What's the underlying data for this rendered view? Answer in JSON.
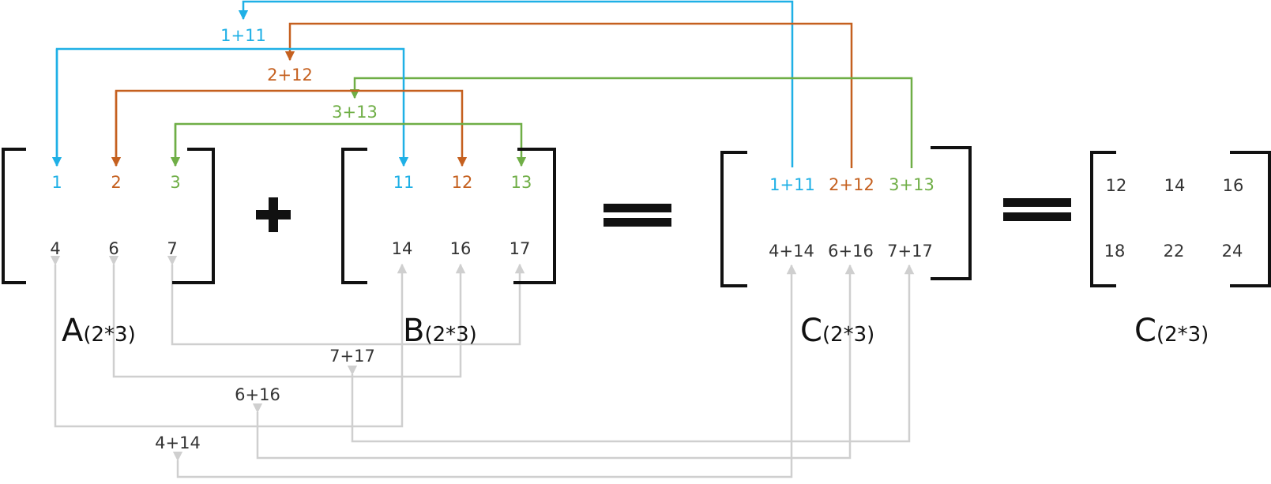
{
  "colors": {
    "blue": "#1fb0e6",
    "orange": "#c5601f",
    "green": "#6fae46",
    "gray": "#cfcfcf",
    "black": "#111111",
    "dark_text": "#333333"
  },
  "matrices": {
    "A": {
      "name": "A",
      "dims": "(2*3)",
      "row1": [
        "1",
        "2",
        "3"
      ],
      "row2": [
        "4",
        "6",
        "7"
      ]
    },
    "B": {
      "name": "B",
      "dims": "(2*3)",
      "row1": [
        "11",
        "12",
        "13"
      ],
      "row2": [
        "14",
        "16",
        "17"
      ]
    },
    "C_sum": {
      "name": "C",
      "dims": "(2*3)",
      "row1": [
        "1+11",
        "2+12",
        "3+13"
      ],
      "row2": [
        "4+14",
        "6+16",
        "7+17"
      ]
    },
    "C_result": {
      "name": "C",
      "dims": "(2*3)",
      "row1": [
        "12",
        "14",
        "16"
      ],
      "row2": [
        "18",
        "22",
        "24"
      ]
    }
  },
  "operators": {
    "plus": "plus-sign",
    "equals": "equals-sign"
  },
  "sum_labels": {
    "top": [
      "1+11",
      "2+12",
      "3+13"
    ],
    "bottom": [
      "4+14",
      "6+16",
      "7+17"
    ]
  }
}
